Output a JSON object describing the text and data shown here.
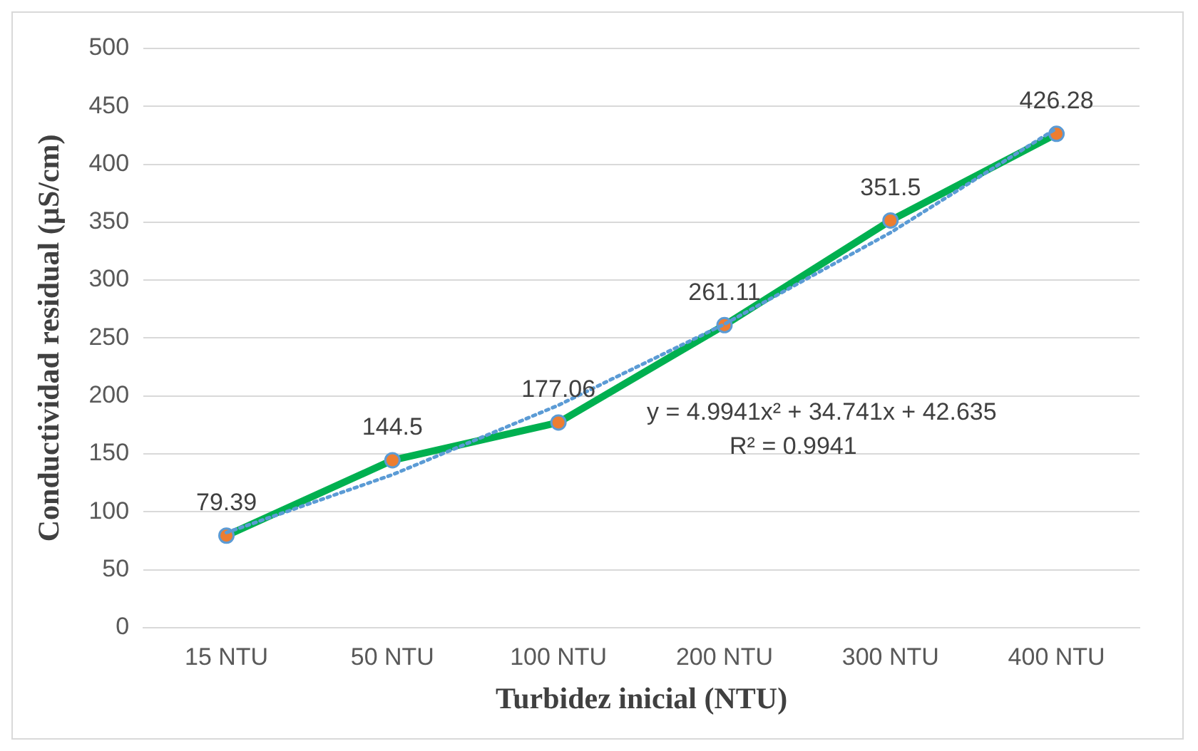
{
  "chart_data": {
    "type": "line",
    "xlabel": "Turbidez inicial (NTU)",
    "ylabel": "Conductividad residual (µS/cm)",
    "categories": [
      "15 NTU",
      "50 NTU",
      "100 NTU",
      "200 NTU",
      "300 NTU",
      "400 NTU"
    ],
    "series": [
      {
        "color": "#00b050",
        "values": [
          79.39,
          144.5,
          177.06,
          261.11,
          351.5,
          426.28
        ],
        "value_labels": [
          "79.39",
          "144.5",
          "177.06",
          "261.11",
          "351.5",
          "426.28"
        ],
        "marker": "circle",
        "line_style": "solid"
      },
      {
        "color": "#5b9bd5",
        "values": [
          82,
          132,
          192,
          262,
          341,
          431
        ],
        "marker": "none",
        "line_style": "dotted"
      }
    ],
    "annotations": [
      "y = 4.9941x² + 34.741x + 42.635",
      "R² = 0.9941"
    ],
    "ylim": [
      0,
      500
    ],
    "yticks": [
      0,
      50,
      100,
      150,
      200,
      250,
      300,
      350,
      400,
      450,
      500
    ],
    "grid": "y",
    "legend": false
  }
}
